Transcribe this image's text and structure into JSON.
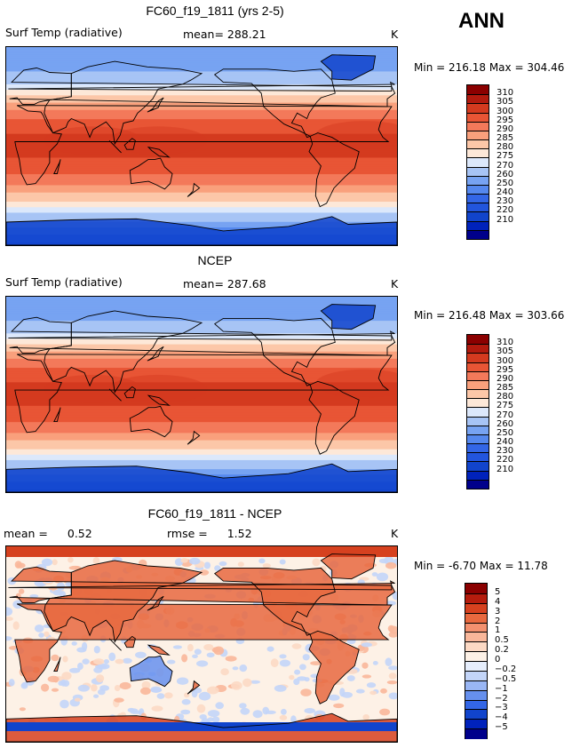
{
  "header": {
    "season": "ANN"
  },
  "panels": [
    {
      "title": "FC60_f19_1811 (yrs 2-5)",
      "left_text": "Surf Temp (radiative)",
      "mid_text": "mean= 288.21",
      "units": "K",
      "min_label": "Min =",
      "min_value": "216.18",
      "max_label": "Max =",
      "max_value": "304.46"
    },
    {
      "title": "NCEP",
      "left_text": "Surf Temp (radiative)",
      "mid_text": "mean= 287.68",
      "units": "K",
      "min_label": "Min =",
      "min_value": "216.48",
      "max_label": "Max =",
      "max_value": "303.66"
    },
    {
      "title": "FC60_f19_1811 - NCEP",
      "mean_label": "mean =",
      "mean_value": "0.52",
      "rmse_label": "rmse =",
      "rmse_value": "1.52",
      "units": "K",
      "min_label": "Min =",
      "min_value": "-6.70",
      "max_label": "Max =",
      "max_value": "11.78"
    }
  ],
  "colors": {
    "abs_scale": [
      "#00008b",
      "#0022bb",
      "#1144cc",
      "#2255dd",
      "#3366e6",
      "#5588ee",
      "#77a3f2",
      "#a7c4f5",
      "#dce8fb",
      "#fde8d8",
      "#fcc7a8",
      "#f9a07c",
      "#f3795a",
      "#e85535",
      "#d43a1f",
      "#b21a0e",
      "#8b0000"
    ],
    "diff_scale": [
      "#00008b",
      "#0022bb",
      "#1144cc",
      "#3366e6",
      "#6690ee",
      "#99b6f4",
      "#c3d5f8",
      "#e6eefc",
      "#fdf1e6",
      "#fcd9c4",
      "#f9b79a",
      "#f3916f",
      "#e8693f",
      "#d6411f",
      "#b51c0d",
      "#8b0000"
    ],
    "coast": "#000000"
  },
  "chart_data": [
    {
      "type": "heatmap",
      "title": "FC60_f19_1811 (yrs 2-5)",
      "variable": "Surf Temp (radiative)",
      "units": "K",
      "mean": 288.21,
      "min": 216.18,
      "max": 304.46,
      "colorbar_levels": [
        210,
        220,
        230,
        240,
        250,
        260,
        270,
        275,
        280,
        285,
        290,
        295,
        300,
        305,
        310
      ],
      "colorbar_labels": [
        "310",
        "305",
        "300",
        "295",
        "290",
        "285",
        "280",
        "275",
        "270",
        "260",
        "250",
        "240",
        "230",
        "220",
        "210"
      ],
      "zonal_profile_K": [
        {
          "lat": -90,
          "t": 225
        },
        {
          "lat": -80,
          "t": 240
        },
        {
          "lat": -70,
          "t": 258
        },
        {
          "lat": -60,
          "t": 272
        },
        {
          "lat": -50,
          "t": 280
        },
        {
          "lat": -40,
          "t": 287
        },
        {
          "lat": -30,
          "t": 293
        },
        {
          "lat": -20,
          "t": 297
        },
        {
          "lat": -10,
          "t": 300
        },
        {
          "lat": 0,
          "t": 301
        },
        {
          "lat": 10,
          "t": 300
        },
        {
          "lat": 20,
          "t": 297
        },
        {
          "lat": 30,
          "t": 292
        },
        {
          "lat": 40,
          "t": 284
        },
        {
          "lat": 50,
          "t": 276
        },
        {
          "lat": 60,
          "t": 266
        },
        {
          "lat": 70,
          "t": 257
        },
        {
          "lat": 80,
          "t": 252
        },
        {
          "lat": 90,
          "t": 250
        }
      ]
    },
    {
      "type": "heatmap",
      "title": "NCEP",
      "variable": "Surf Temp (radiative)",
      "units": "K",
      "mean": 287.68,
      "min": 216.48,
      "max": 303.66,
      "colorbar_levels": [
        210,
        220,
        230,
        240,
        250,
        260,
        270,
        275,
        280,
        285,
        290,
        295,
        300,
        305,
        310
      ],
      "colorbar_labels": [
        "310",
        "305",
        "300",
        "295",
        "290",
        "285",
        "280",
        "275",
        "270",
        "260",
        "250",
        "240",
        "230",
        "220",
        "210"
      ],
      "zonal_profile_K": [
        {
          "lat": -90,
          "t": 226
        },
        {
          "lat": -80,
          "t": 240
        },
        {
          "lat": -70,
          "t": 257
        },
        {
          "lat": -60,
          "t": 271
        },
        {
          "lat": -50,
          "t": 279
        },
        {
          "lat": -40,
          "t": 286
        },
        {
          "lat": -30,
          "t": 292
        },
        {
          "lat": -20,
          "t": 296
        },
        {
          "lat": -10,
          "t": 299
        },
        {
          "lat": 0,
          "t": 300
        },
        {
          "lat": 10,
          "t": 299
        },
        {
          "lat": 20,
          "t": 296
        },
        {
          "lat": 30,
          "t": 291
        },
        {
          "lat": 40,
          "t": 283
        },
        {
          "lat": 50,
          "t": 275
        },
        {
          "lat": 60,
          "t": 265
        },
        {
          "lat": 70,
          "t": 256
        },
        {
          "lat": 80,
          "t": 251
        },
        {
          "lat": 90,
          "t": 249
        }
      ]
    },
    {
      "type": "heatmap",
      "title": "FC60_f19_1811 - NCEP",
      "units": "K",
      "mean": 0.52,
      "rmse": 1.52,
      "min": -6.7,
      "max": 11.78,
      "colorbar_levels": [
        -5,
        -4,
        -3,
        -2,
        -1,
        -0.5,
        -0.2,
        0,
        0.2,
        0.5,
        1,
        2,
        3,
        4,
        5
      ],
      "colorbar_labels": [
        "5",
        "4",
        "3",
        "2",
        "1",
        "0.5",
        "0.2",
        "0",
        "−0.2",
        "−0.5",
        "−1",
        "−2",
        "−3",
        "−4",
        "−5"
      ]
    }
  ]
}
